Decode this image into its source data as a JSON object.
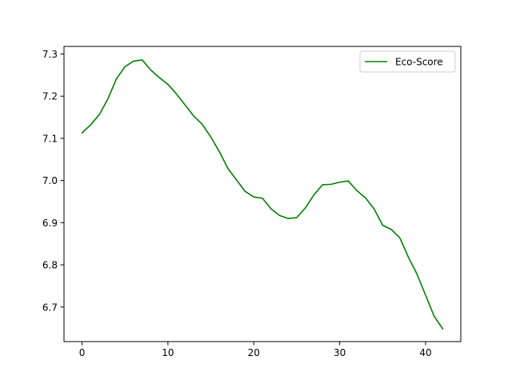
{
  "chart_data": {
    "type": "line",
    "title": "",
    "xlabel": "",
    "ylabel": "",
    "xlim": [
      -2.1,
      44.1
    ],
    "ylim": [
      6.618,
      7.318
    ],
    "xticks": [
      0,
      10,
      20,
      30,
      40
    ],
    "yticks": [
      6.7,
      6.8,
      6.9,
      7.0,
      7.1,
      7.2,
      7.3
    ],
    "grid": false,
    "legend_position": "top-right",
    "series": [
      {
        "name": "Eco-Score",
        "color": "#008000",
        "x": [
          0,
          1,
          2,
          3,
          4,
          5,
          6,
          7,
          8,
          9,
          10,
          11,
          12,
          13,
          14,
          15,
          16,
          17,
          18,
          19,
          20,
          21,
          22,
          23,
          24,
          25,
          26,
          27,
          28,
          29,
          30,
          31,
          32,
          33,
          34,
          35,
          36,
          37,
          38,
          39,
          40,
          41,
          42
        ],
        "y": [
          7.113,
          7.132,
          7.156,
          7.193,
          7.241,
          7.27,
          7.283,
          7.286,
          7.262,
          7.244,
          7.228,
          7.205,
          7.179,
          7.153,
          7.133,
          7.103,
          7.068,
          7.028,
          7.001,
          6.974,
          6.961,
          6.958,
          6.933,
          6.917,
          6.91,
          6.912,
          6.935,
          6.966,
          6.99,
          6.991,
          6.996,
          6.999,
          6.976,
          6.959,
          6.933,
          6.894,
          6.884,
          6.864,
          6.818,
          6.778,
          6.728,
          6.678,
          6.648
        ]
      }
    ]
  }
}
